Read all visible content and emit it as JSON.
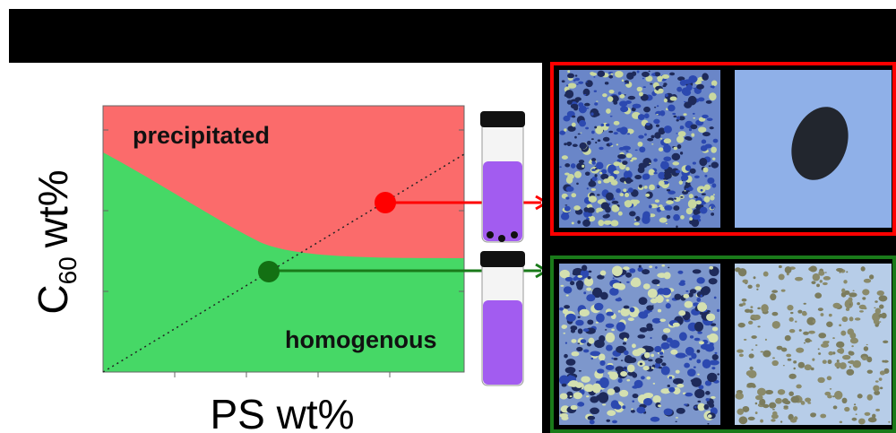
{
  "plot": {
    "region_top": "precipitated",
    "region_bottom": "homogenous",
    "y_axis": {
      "base": "C",
      "subscript": "60",
      "unit": "wt%"
    },
    "x_axis": "PS wt%"
  }
}
